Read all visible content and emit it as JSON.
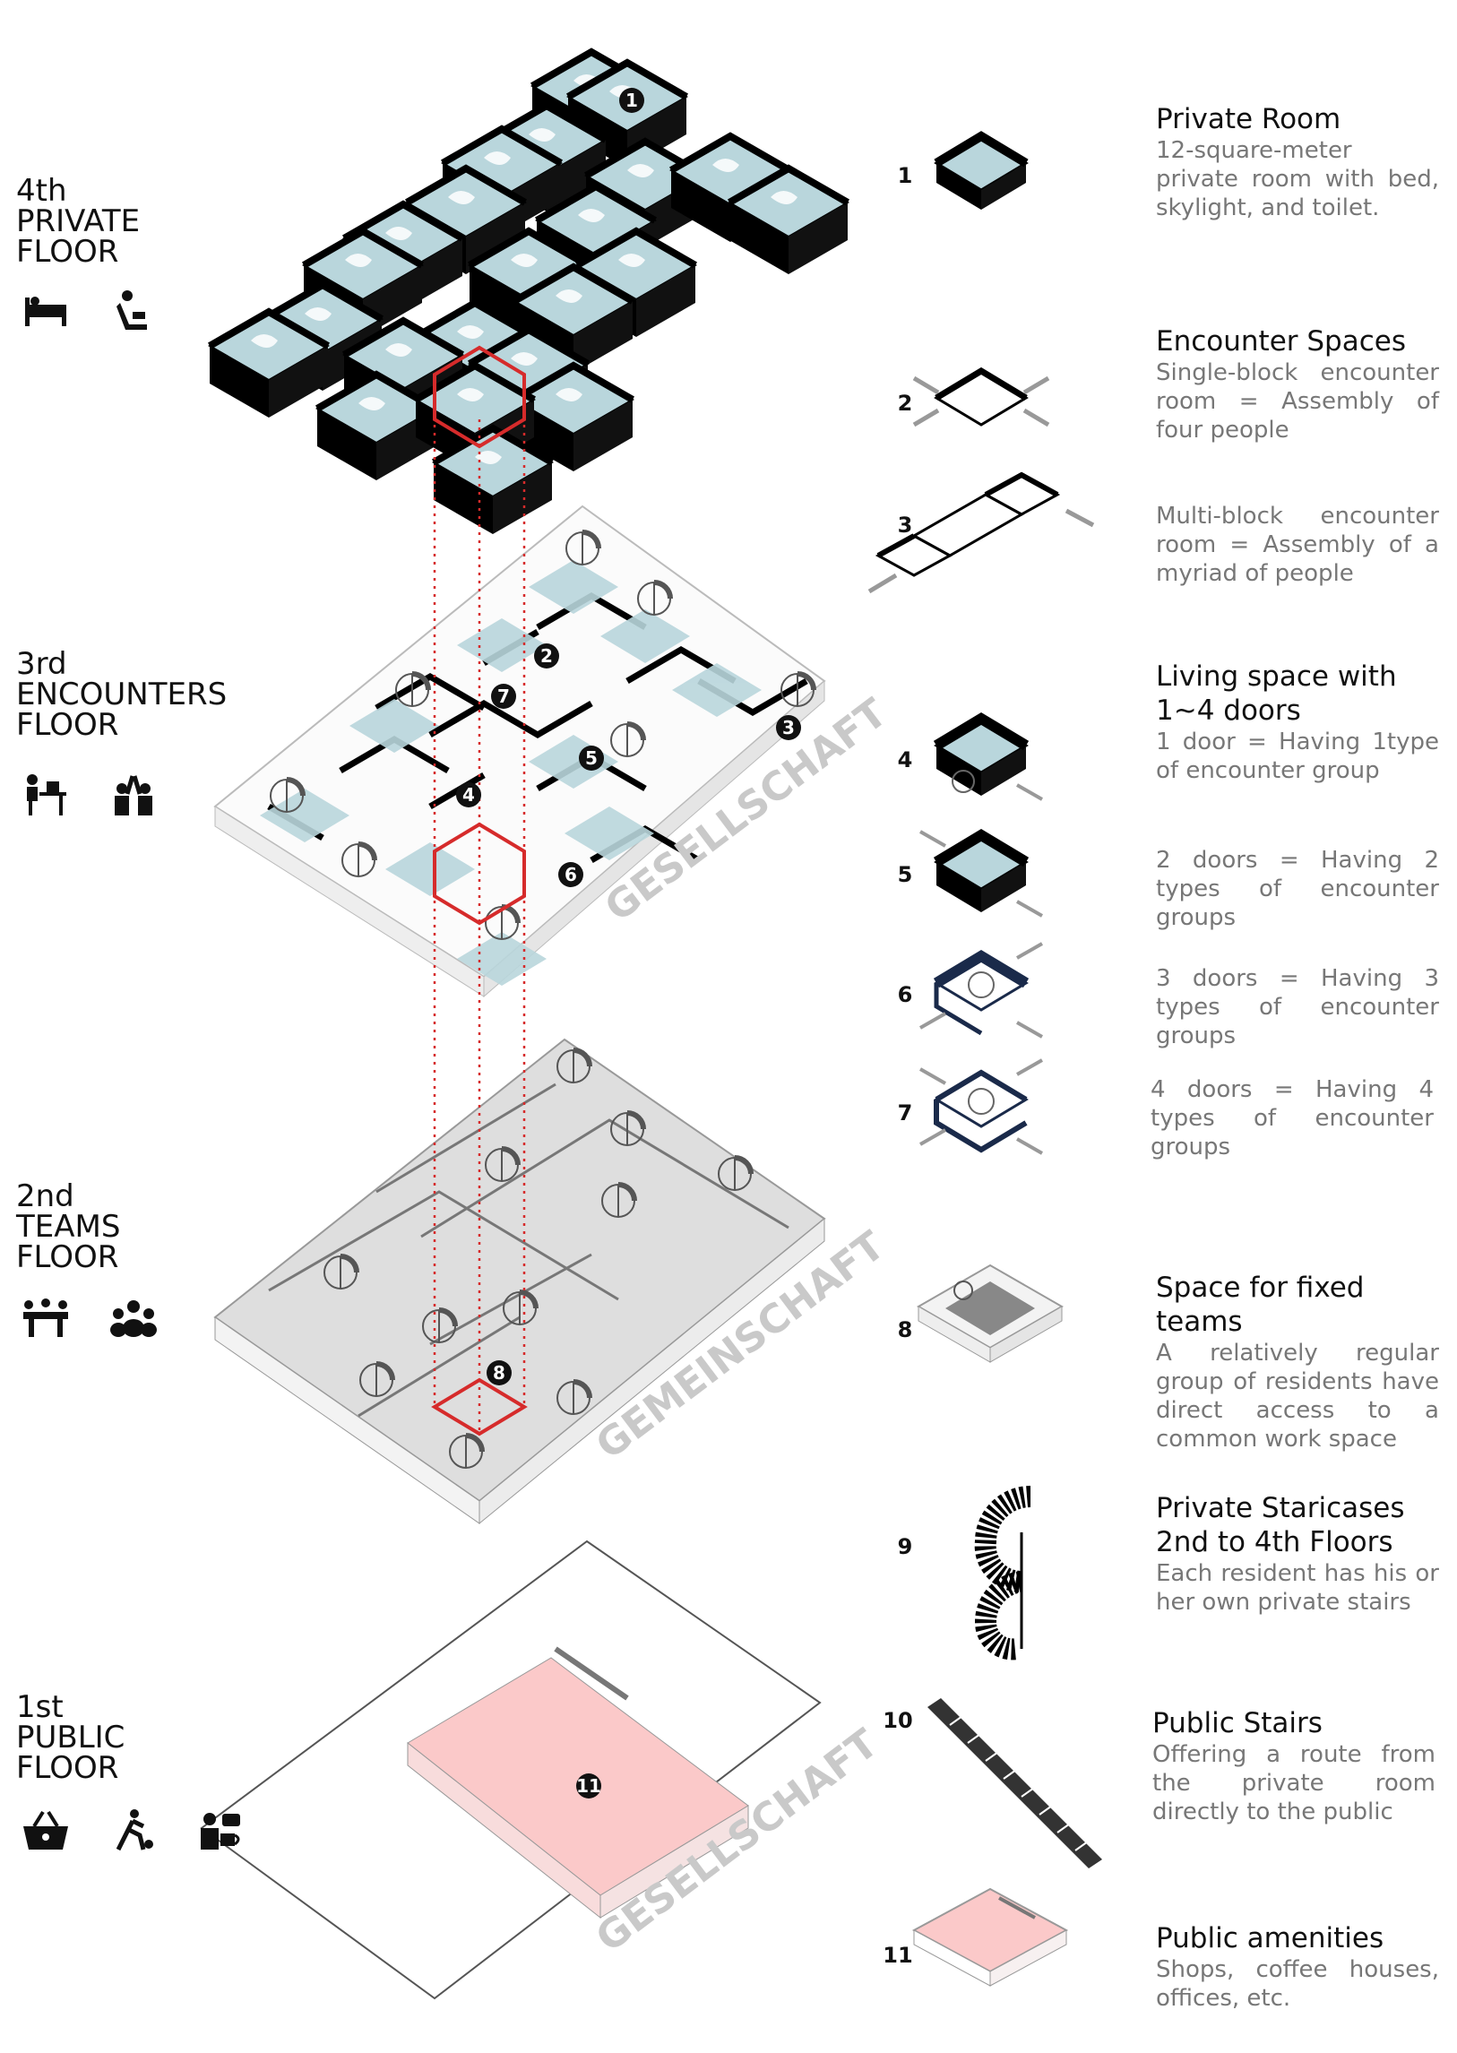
{
  "floors": [
    {
      "ordinal": "4th",
      "name": "PRIVATE",
      "suffix": "FLOOR"
    },
    {
      "ordinal": "3rd",
      "name": "ENCOUNTERS",
      "suffix": "FLOOR"
    },
    {
      "ordinal": "2nd",
      "name": "TEAMS",
      "suffix": "FLOOR"
    },
    {
      "ordinal": "1st",
      "name": "PUBLIC",
      "suffix": "FLOOR"
    }
  ],
  "watermarks": [
    "GESELLSCHAFT",
    "GEMEINSCHAFT",
    "GESELLSCHAFT"
  ],
  "legend": [
    {
      "num": "1",
      "title": "Private Room",
      "desc": "12-square-meter private room with bed, skylight, and toilet."
    },
    {
      "num": "2",
      "title": "Encounter Spaces",
      "desc": "Single-block encounter room = Assembly of four people"
    },
    {
      "num": "3",
      "title": "",
      "desc": "Multi-block encounter room = Assembly of a myriad of people"
    },
    {
      "num": "4",
      "title": "Living space with 1~4 doors",
      "desc": "1 door = Having 1type of encounter group"
    },
    {
      "num": "5",
      "title": "",
      "desc": "2 doors = Having 2 types of encounter groups"
    },
    {
      "num": "6",
      "title": "",
      "desc": "3 doors = Having 3 types of encounter groups"
    },
    {
      "num": "7",
      "title": "",
      "desc": "4 doors = Having 4 types of encounter groups"
    },
    {
      "num": "8",
      "title": "Space for fixed teams",
      "desc": "A relatively regular group of residents have direct access to a common work space"
    },
    {
      "num": "9",
      "title": "Private Staricases 2nd to 4th Floors",
      "desc": "Each resident has his or her own private stairs"
    },
    {
      "num": "10",
      "title": "Public Stairs",
      "desc": "Offering a route from the private room directly to the public"
    },
    {
      "num": "11",
      "title": "Public amenities",
      "desc": "Shops, coffee houses, offices, etc."
    }
  ],
  "markers": [
    "1",
    "2",
    "3",
    "4",
    "5",
    "6",
    "7",
    "8",
    "11"
  ],
  "icons": {
    "floor4": [
      "bed-icon",
      "armchair-icon"
    ],
    "floor3": [
      "desk-worker-icon",
      "high-five-icon"
    ],
    "floor2": [
      "meeting-table-icon",
      "group-icon"
    ],
    "floor1": [
      "shopping-basket-icon",
      "running-icon",
      "coffee-chat-icon"
    ]
  },
  "colors": {
    "room_floor": "#b9d6dc",
    "wall": "#000000",
    "highlight": "#d62b2b",
    "teams_floor": "#dedede",
    "public_floor": "#fbc9c9"
  }
}
